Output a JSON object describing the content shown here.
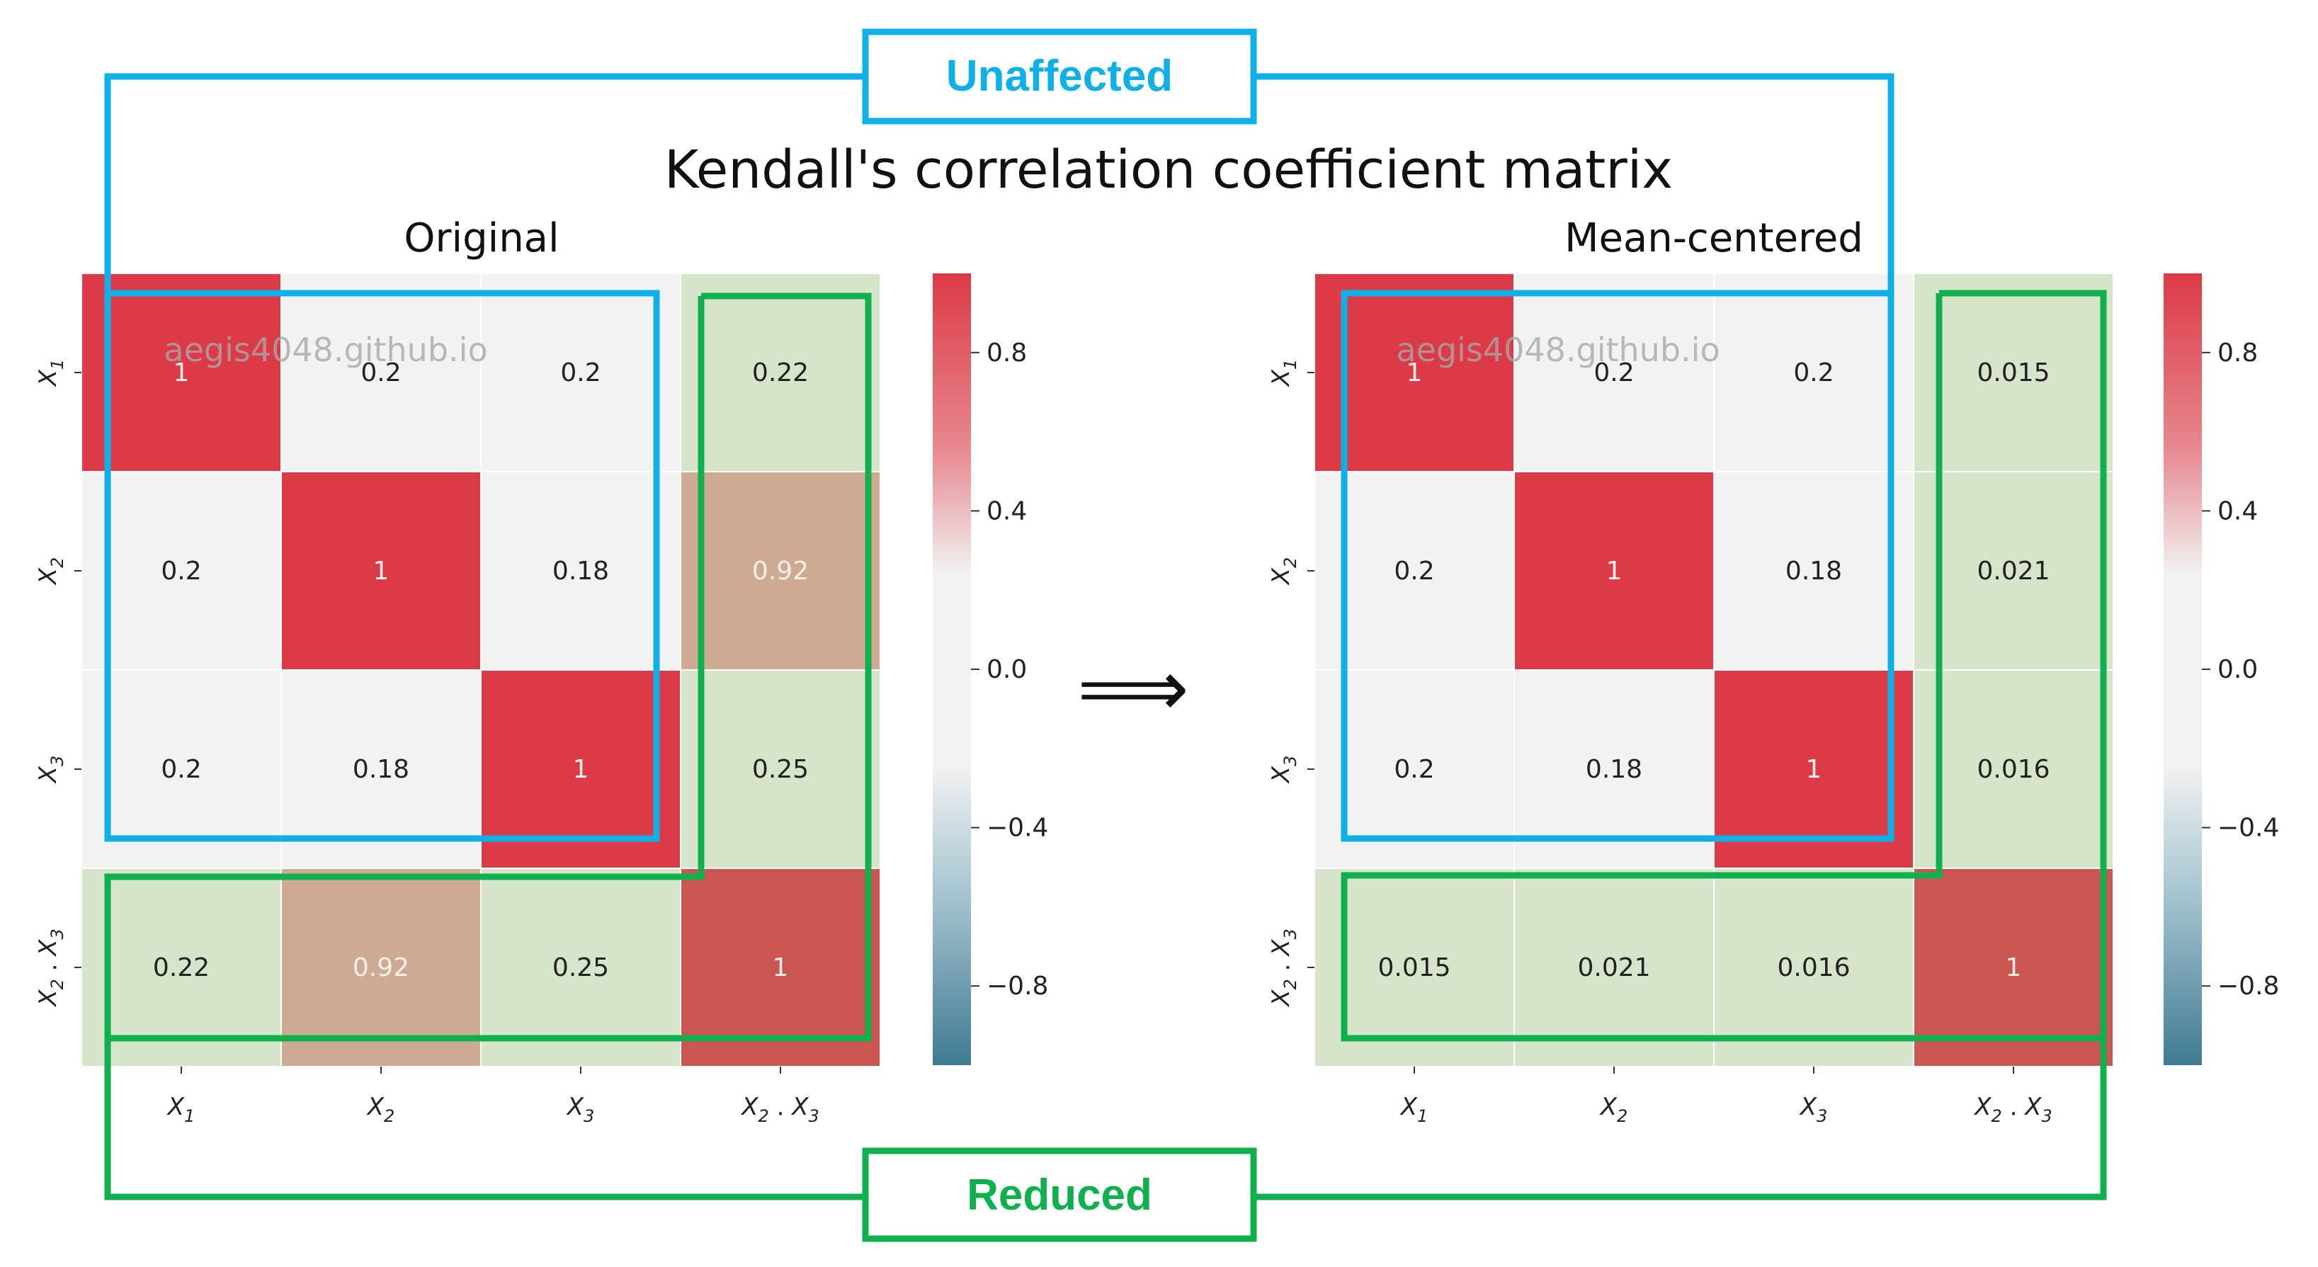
{
  "title": "Kendall's correlation coefficient matrix",
  "callouts": {
    "unaffected": "Unaffected",
    "reduced": "Reduced"
  },
  "arrow": "⟹",
  "watermark": "aegis4048.github.io",
  "colors": {
    "blue_box": "#0fb0e8",
    "green_box": "#10b04e",
    "green_fill": "#c5dcb0",
    "pos": "#dc3a46",
    "neg": "#3f7a92",
    "neutral": "#f2f2f2"
  },
  "colorbar_ticks": [
    "0.8",
    "0.4",
    "0.0",
    "−0.4",
    "−0.8"
  ],
  "chart_data": [
    {
      "type": "heatmap",
      "title": "Original",
      "categories": [
        "X1",
        "X2",
        "X3",
        "X2·X3"
      ],
      "values": [
        [
          1,
          0.2,
          0.2,
          0.22
        ],
        [
          0.2,
          1,
          0.18,
          0.92
        ],
        [
          0.2,
          0.18,
          1,
          0.25
        ],
        [
          0.22,
          0.92,
          0.25,
          1
        ]
      ],
      "labels": [
        [
          "1",
          "0.2",
          "0.2",
          "0.22"
        ],
        [
          "0.2",
          "1",
          "0.18",
          "0.92"
        ],
        [
          "0.2",
          "0.18",
          "1",
          "0.25"
        ],
        [
          "0.22",
          "0.92",
          "0.25",
          "1"
        ]
      ],
      "vmin": -1,
      "vmax": 1
    },
    {
      "type": "heatmap",
      "title": "Mean-centered",
      "categories": [
        "X1",
        "X2",
        "X3",
        "X2·X3"
      ],
      "values": [
        [
          1,
          0.2,
          0.2,
          0.015
        ],
        [
          0.2,
          1,
          0.18,
          0.021
        ],
        [
          0.2,
          0.18,
          1,
          0.016
        ],
        [
          0.015,
          0.021,
          0.016,
          1
        ]
      ],
      "labels": [
        [
          "1",
          "0.2",
          "0.2",
          "0.015"
        ],
        [
          "0.2",
          "1",
          "0.18",
          "0.021"
        ],
        [
          "0.2",
          "0.18",
          "1",
          "0.016"
        ],
        [
          "0.015",
          "0.021",
          "0.016",
          "1"
        ]
      ],
      "vmin": -1,
      "vmax": 1
    }
  ]
}
